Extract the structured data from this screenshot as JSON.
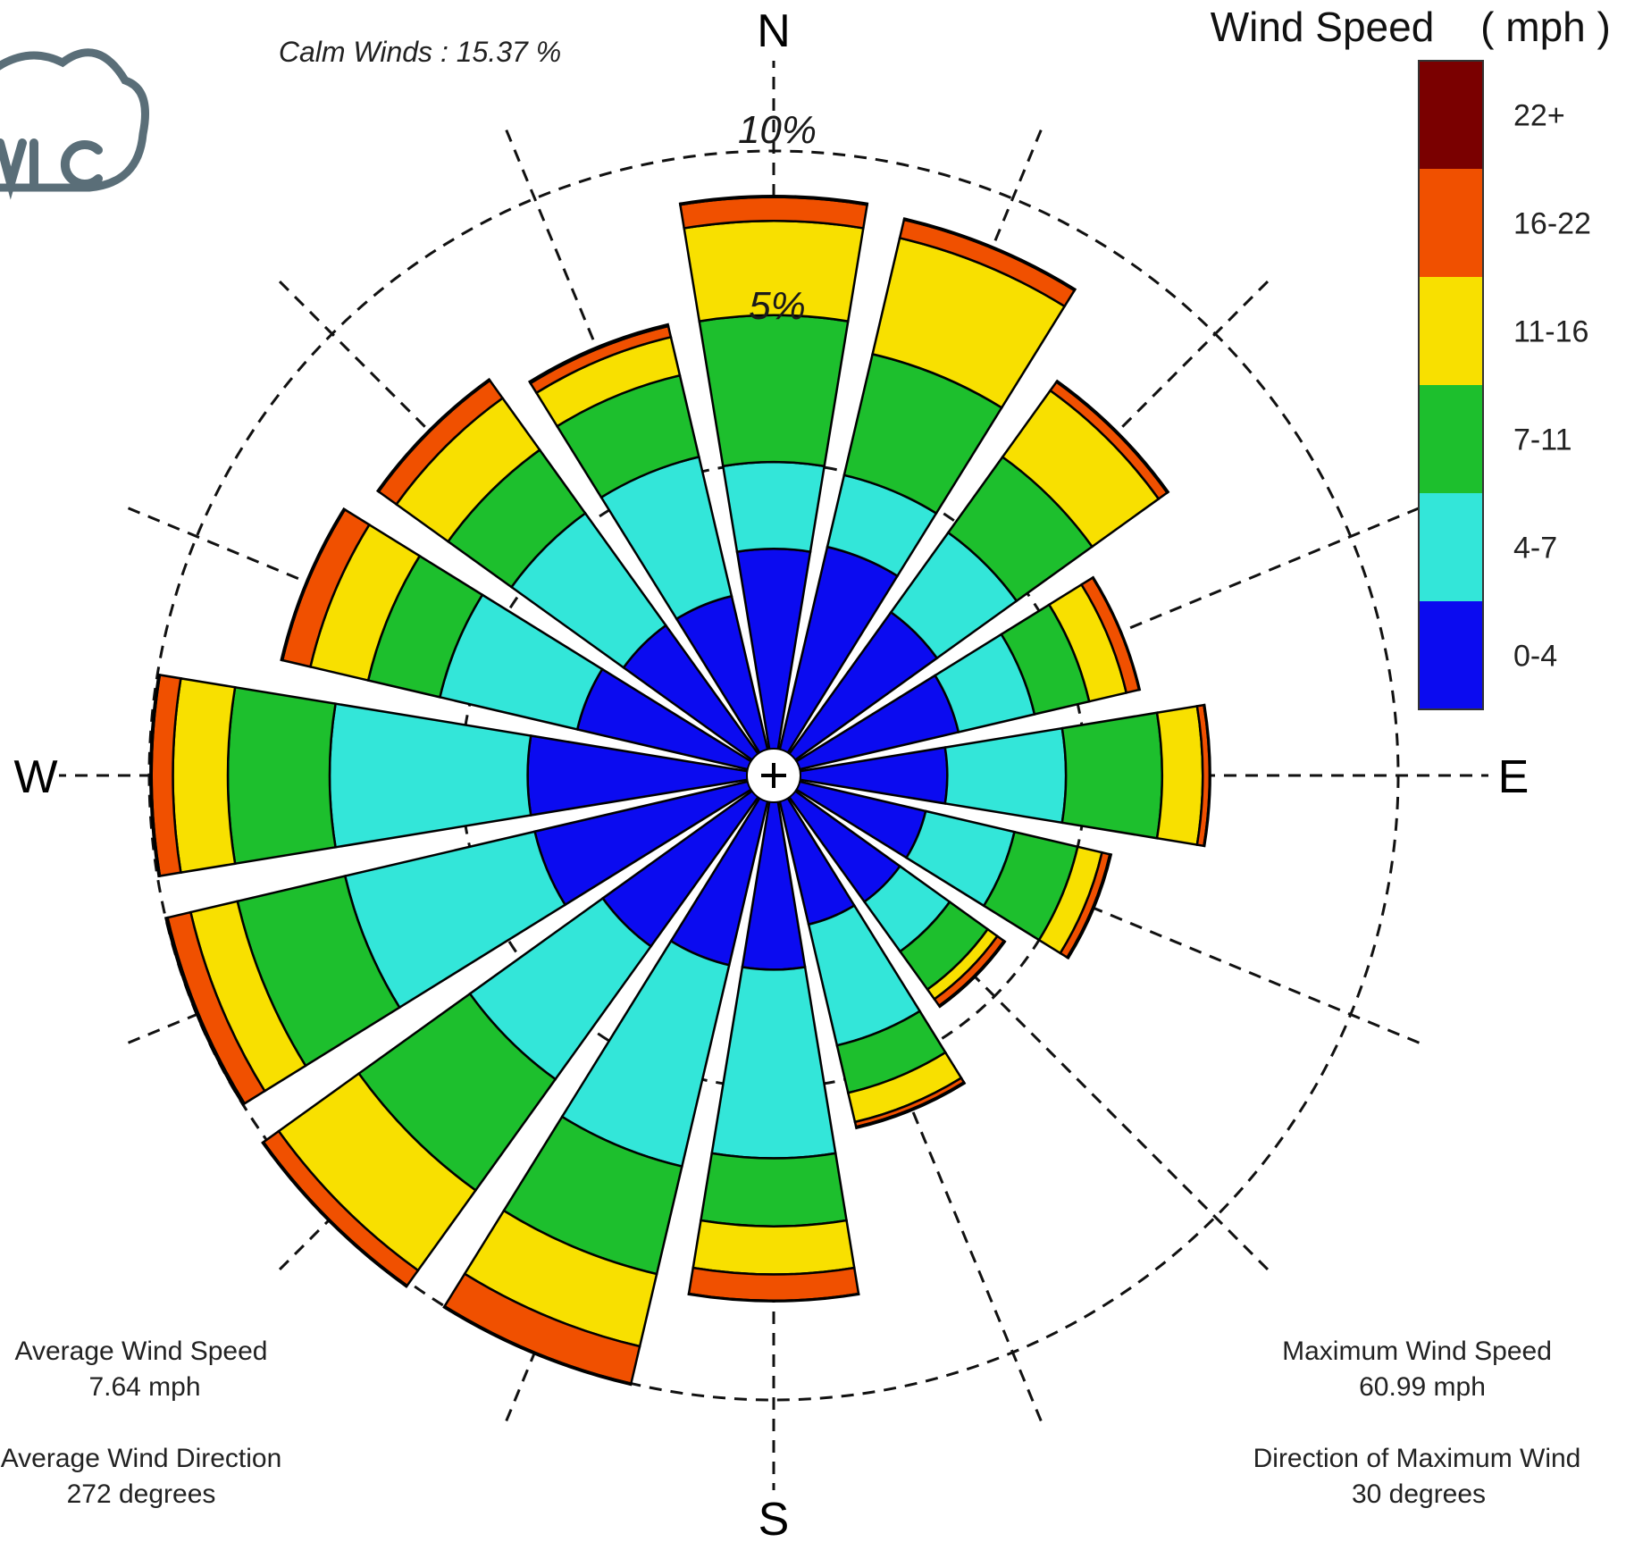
{
  "chart_data": {
    "type": "windrose",
    "calm_label": "Calm Winds : 15.37 %",
    "directions": [
      "N",
      "E",
      "S",
      "W"
    ],
    "ring_labels": [
      {
        "value": 5,
        "label": "5%"
      },
      {
        "value": 10,
        "label": "10%"
      }
    ],
    "rmax": 10,
    "legend": {
      "title": "Wind Speed",
      "unit": "( mph )",
      "bins": [
        {
          "label": "0-4",
          "color": "#0b0bf0"
        },
        {
          "label": "4-7",
          "color": "#33e6d9"
        },
        {
          "label": "7-11",
          "color": "#1dbf2d"
        },
        {
          "label": "11-16",
          "color": "#f8e000"
        },
        {
          "label": "16-22",
          "color": "#f05000"
        },
        {
          "label": "22+",
          "color": "#7a0000"
        }
      ]
    },
    "sectors": [
      {
        "dir": 0,
        "values": [
          3.63,
          5.02,
          7.37,
          8.88,
          9.26,
          9.28
        ]
      },
      {
        "dir": 22.5,
        "values": [
          3.76,
          4.94,
          6.93,
          8.84,
          9.14,
          9.16
        ]
      },
      {
        "dir": 45,
        "values": [
          3.22,
          4.79,
          6.28,
          7.59,
          7.76,
          7.78
        ]
      },
      {
        "dir": 67.5,
        "values": [
          3.04,
          4.29,
          5.19,
          5.8,
          6.01,
          6.02
        ]
      },
      {
        "dir": 90,
        "values": [
          2.78,
          4.68,
          6.22,
          6.87,
          6.98,
          6.99
        ]
      },
      {
        "dir": 112.5,
        "values": [
          2.5,
          3.96,
          5.0,
          5.4,
          5.53,
          5.55
        ]
      },
      {
        "dir": 135,
        "values": [
          2.49,
          3.47,
          4.22,
          4.41,
          4.54,
          4.56
        ]
      },
      {
        "dir": 157.5,
        "values": [
          2.45,
          4.44,
          5.22,
          5.7,
          5.78,
          5.8
        ]
      },
      {
        "dir": 180,
        "values": [
          3.11,
          6.13,
          7.22,
          7.99,
          8.41,
          8.42
        ]
      },
      {
        "dir": 202.5,
        "values": [
          3.12,
          6.43,
          8.2,
          9.39,
          10.0,
          10.02
        ]
      },
      {
        "dir": 225,
        "values": [
          3.37,
          5.99,
          8.18,
          9.76,
          10.06,
          10.08
        ]
      },
      {
        "dir": 247.5,
        "values": [
          3.93,
          7.05,
          8.82,
          9.59,
          9.97,
          10.0
        ]
      },
      {
        "dir": 270,
        "values": [
          3.94,
          7.11,
          8.74,
          9.62,
          9.96,
          9.98
        ]
      },
      {
        "dir": 292.5,
        "values": [
          3.23,
          5.49,
          6.67,
          7.62,
          8.08,
          8.1
        ]
      },
      {
        "dir": 315,
        "values": [
          2.96,
          5.17,
          6.42,
          7.44,
          7.79,
          7.81
        ]
      },
      {
        "dir": 337.5,
        "values": [
          2.95,
          5.24,
          6.58,
          7.21,
          7.39,
          7.42
        ]
      }
    ]
  },
  "stats": {
    "avg_speed_label": "Average Wind Speed",
    "avg_speed_value": "7.64 mph",
    "avg_dir_label": "Average Wind Direction",
    "avg_dir_value": "272 degrees",
    "max_speed_label": "Maximum Wind Speed",
    "max_speed_value": "60.99 mph",
    "max_dir_label": "Direction of Maximum Wind",
    "max_dir_value": "30 degrees"
  },
  "logo": {
    "icon": "cloud-logo-icon",
    "color": "#5a6e78"
  }
}
